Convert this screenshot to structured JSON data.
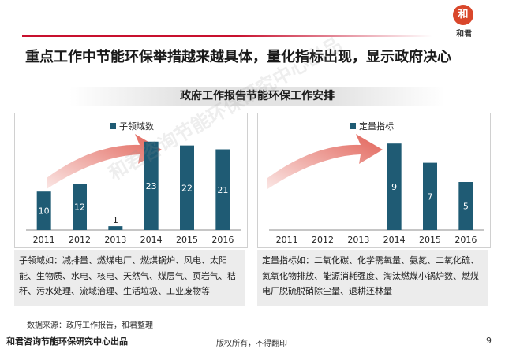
{
  "header": {
    "logo_seal": "和",
    "logo_text": "和君",
    "title": "重点工作中节能环保举措越来越具体，量化指标出现，显示政府决心"
  },
  "section": {
    "title": "政府工作报告节能环保工作安排"
  },
  "colors": {
    "bar": "#1f5b74",
    "accent_red": "#c8102e",
    "arrow": "#e05a4f"
  },
  "chart_data": [
    {
      "type": "bar",
      "categories": [
        "2011",
        "2012",
        "2013",
        "2014",
        "2015",
        "2016"
      ],
      "series": [
        {
          "name": "子领域数",
          "values": [
            10,
            12,
            1,
            23,
            22,
            21
          ]
        }
      ],
      "ylim": [
        0,
        25
      ],
      "grid": false,
      "legend": "top-left",
      "data_labels": true
    },
    {
      "type": "bar",
      "categories": [
        "2011",
        "2012",
        "2013",
        "2014",
        "2015",
        "2016"
      ],
      "series": [
        {
          "name": "定量指标",
          "values": [
            0,
            0,
            0,
            9,
            7,
            5
          ]
        }
      ],
      "ylim": [
        0,
        10
      ],
      "grid": false,
      "legend": "top-left",
      "data_labels": true
    }
  ],
  "notes": {
    "left": "子领域如：减排量、燃煤电厂、燃煤锅炉、风电、太阳能、生物质、水电、核电、天然气、煤层气、页岩气、秸秆、污水处理、流域治理、生活垃圾、工业废物等",
    "right": "定量指标如：二氧化碳、化学需氧量、氨氮、二氧化硫、氮氧化物排放、能源消耗强度、淘汰燃煤小锅炉数、燃煤电厂脱硫脱硝除尘量、退耕还林量"
  },
  "source": "数据来源：政府工作报告，和君整理",
  "footer": {
    "org": "和君咨询节能环保研究中心出品",
    "copyright": "版权所有，不得翻印",
    "page": "9"
  },
  "watermark": "和君咨询节能环保研究中心出品"
}
